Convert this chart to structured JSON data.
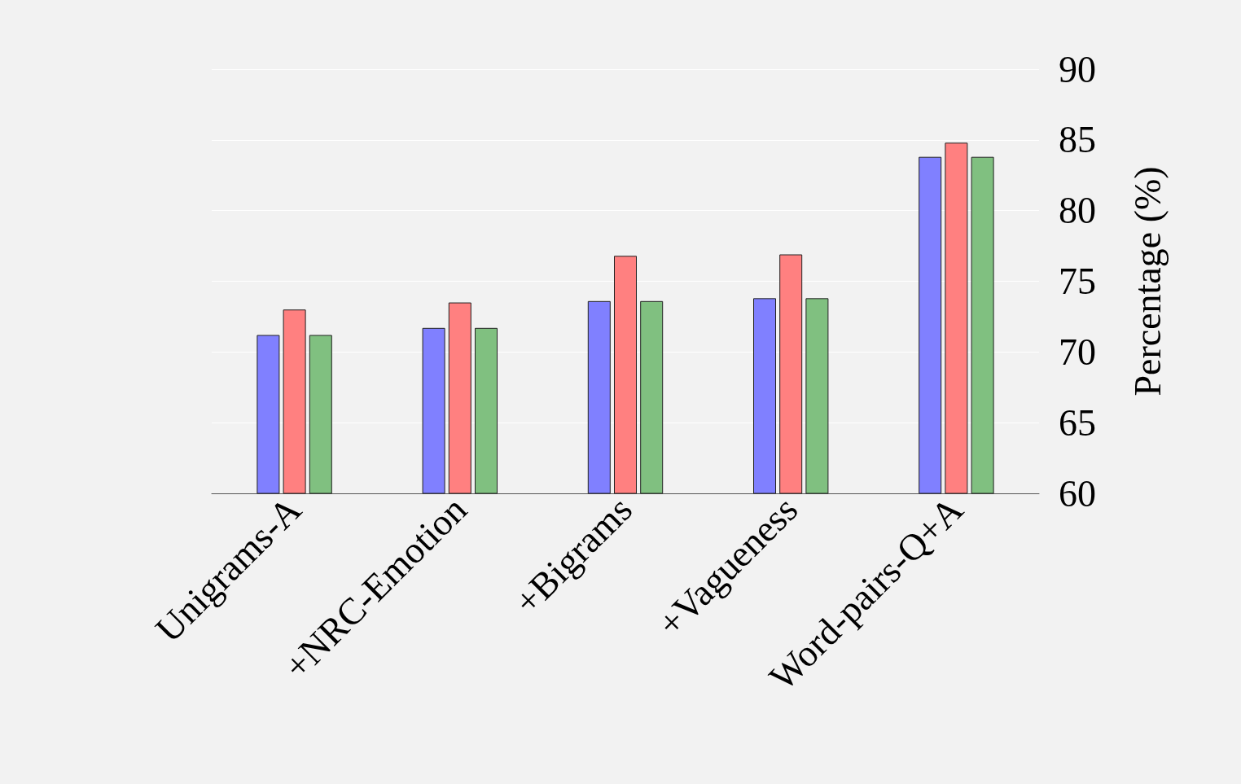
{
  "chart_data": {
    "type": "bar",
    "ylabel": "Percentage (%)",
    "categories": [
      "Unigrams-A",
      "+NRC-Emotion",
      "+Bigrams",
      "+Vagueness",
      "Word-pairs-Q+A"
    ],
    "series": [
      {
        "color": "#8080ff",
        "values": [
          71.2,
          71.7,
          73.6,
          73.8,
          83.8
        ]
      },
      {
        "color": "#ff8080",
        "values": [
          73.0,
          73.5,
          76.8,
          76.9,
          84.8
        ]
      },
      {
        "color": "#80c080",
        "values": [
          71.2,
          71.7,
          73.6,
          73.8,
          83.8
        ]
      }
    ],
    "ylim": [
      60,
      90
    ],
    "yticks": [
      60,
      65,
      70,
      75,
      80,
      85,
      90
    ],
    "grid": "y"
  }
}
